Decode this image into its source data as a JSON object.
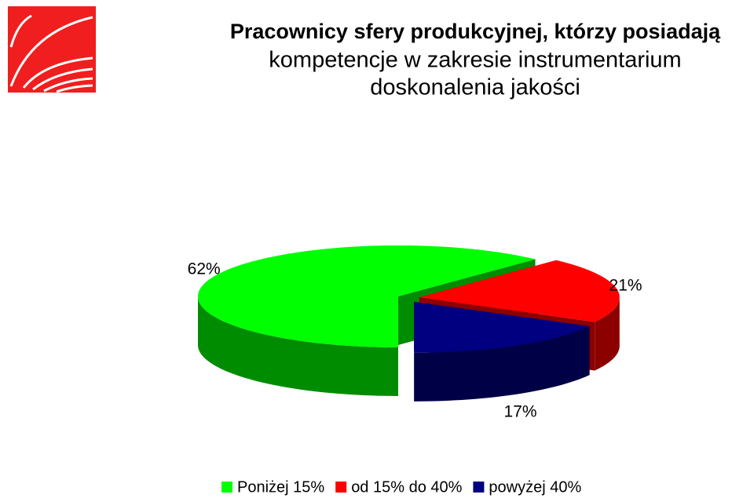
{
  "chart_data": {
    "type": "pie",
    "title": [
      "Pracownicy sfery produkcyjnej, którzy posiadają",
      "kompetencje w zakresie instrumentarium",
      "doskonalenia jakości"
    ],
    "categories": [
      "Poniżej 15%",
      "od 15% do 40%",
      "powyżej 40%"
    ],
    "values": [
      62,
      21,
      17
    ],
    "value_labels": [
      "62%",
      "21%",
      "17%"
    ],
    "colors": [
      "#00ff00",
      "#ff0000",
      "#000080"
    ],
    "legend": "bottom"
  }
}
